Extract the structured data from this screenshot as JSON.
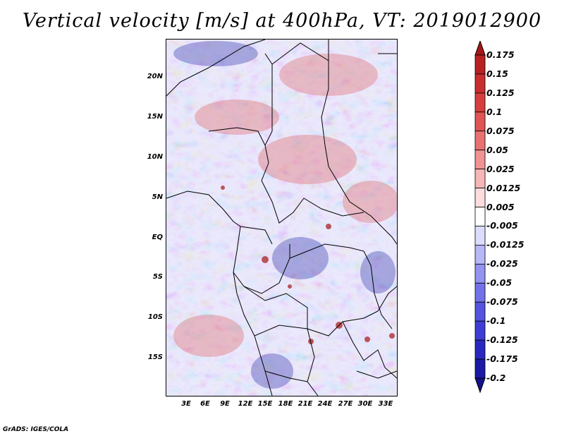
{
  "title": "Vertical velocity [m/s] at 400hPa, VT: 2019012900",
  "footer": "GrADS: IGES/COLA",
  "map": {
    "lat_labels": [
      "20N",
      "15N",
      "10N",
      "5N",
      "EQ",
      "5S",
      "10S",
      "15S"
    ],
    "lon_labels": [
      "3E",
      "6E",
      "9E",
      "12E",
      "15E",
      "18E",
      "21E",
      "24E",
      "27E",
      "30E",
      "33E"
    ],
    "lon_range": [
      0,
      35
    ],
    "lat_range": [
      -20,
      25
    ]
  },
  "colorbar": {
    "labels": [
      "0.175",
      "0.15",
      "0.125",
      "0.1",
      "0.075",
      "0.05",
      "0.025",
      "0.0125",
      "0.005",
      "-0.005",
      "-0.0125",
      "-0.025",
      "-0.05",
      "-0.075",
      "-0.1",
      "-0.125",
      "-0.175",
      "-0.2"
    ],
    "colors": [
      "#a61717",
      "#b82121",
      "#c92e2e",
      "#d63d3d",
      "#e05454",
      "#e87272",
      "#f09393",
      "#f7b7b7",
      "#fcdcdc",
      "#ffffff",
      "#dcdcfc",
      "#b7b7f7",
      "#9393f0",
      "#7272e8",
      "#5454e0",
      "#3d3dd6",
      "#2828c0",
      "#1a1aa6",
      "#12128a"
    ]
  }
}
